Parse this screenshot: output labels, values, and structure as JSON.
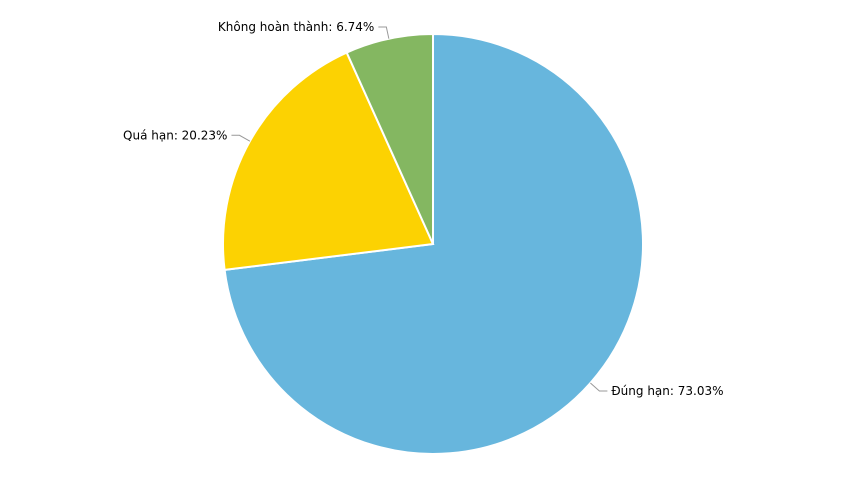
{
  "chart_data": {
    "type": "pie",
    "slices": [
      {
        "label": "Đúng hạn",
        "value": 73.03,
        "display": "Đúng hạn: 73.03%",
        "color": "#67b6dd"
      },
      {
        "label": "Quá hạn",
        "value": 20.23,
        "display": "Quá hạn: 20.23%",
        "color": "#fcd202"
      },
      {
        "label": "Không hoàn thành",
        "value": 6.74,
        "display": "Không hoàn thành: 6.74%",
        "color": "#84b761"
      }
    ],
    "start_angle": "12 o'clock",
    "direction": "clockwise",
    "legend": "none"
  }
}
